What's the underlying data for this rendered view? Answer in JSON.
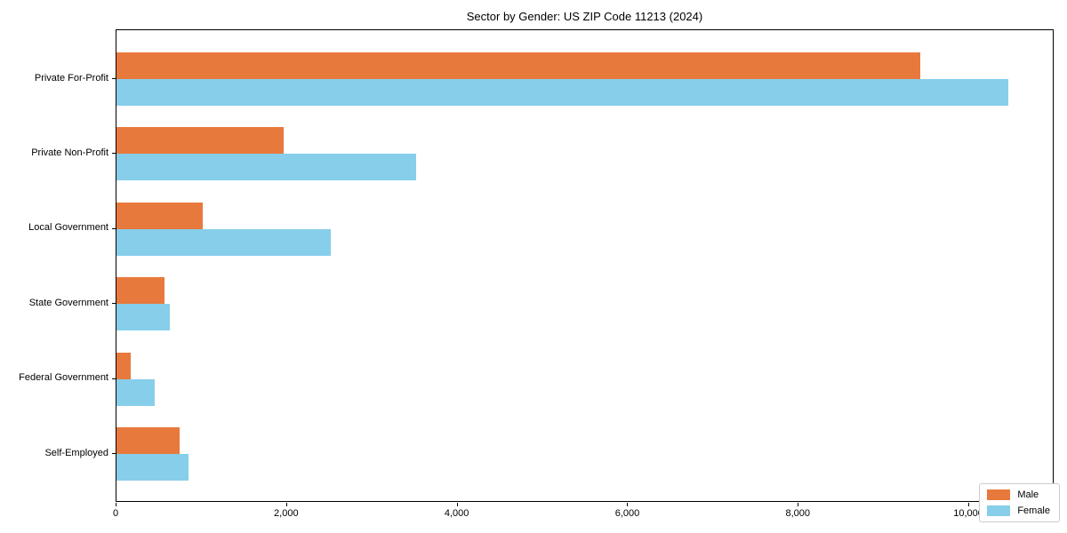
{
  "title": "Sector by Gender: US ZIP Code 11213 (2024)",
  "chart_data": {
    "type": "bar",
    "orientation": "horizontal",
    "title": "Sector by Gender: US ZIP Code 11213 (2024)",
    "categories": [
      "Private For-Profit",
      "Private Non-Profit",
      "Local Government",
      "State Government",
      "Federal Government",
      "Self-Employed"
    ],
    "series": [
      {
        "name": "Male",
        "color": "#E8793C",
        "values": [
          9440,
          1960,
          1010,
          560,
          170,
          740
        ]
      },
      {
        "name": "Female",
        "color": "#87CEEB",
        "values": [
          10480,
          3520,
          2520,
          630,
          450,
          850
        ]
      }
    ],
    "xlabel": "",
    "ylabel": "",
    "xlim": [
      0,
      11000
    ],
    "xticks": [
      0,
      2000,
      4000,
      6000,
      8000,
      10000
    ],
    "xtick_labels": [
      "0",
      "2,000",
      "4,000",
      "6,000",
      "8,000",
      "10,000"
    ],
    "grid": false,
    "legend_position": "lower right",
    "legend_entries": [
      "Male",
      "Female"
    ]
  }
}
